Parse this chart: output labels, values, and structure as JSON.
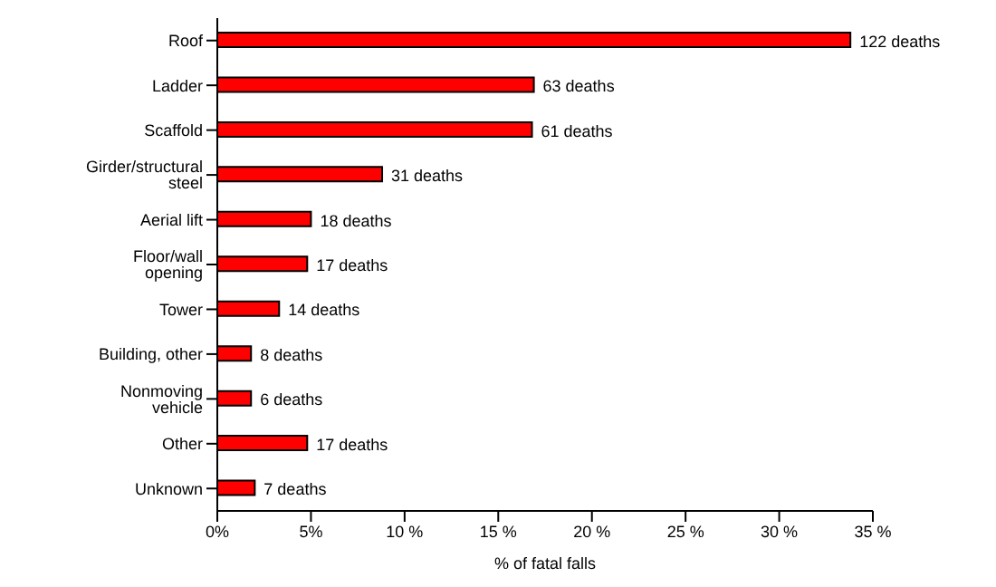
{
  "chart_data": {
    "type": "bar",
    "orientation": "horizontal",
    "xlabel": "% of fatal falls",
    "categories": [
      "Roof",
      "Ladder",
      "Scaffold",
      "Girder/structural steel",
      "Aerial lift",
      "Floor/wall opening",
      "Tower",
      "Building, other",
      "Nonmoving vehicle",
      "Other",
      "Unknown"
    ],
    "values": [
      33.8,
      16.9,
      16.8,
      8.8,
      5.0,
      4.8,
      3.3,
      1.8,
      1.8,
      4.8,
      2.0
    ],
    "annotations": [
      {
        "text": "122 deaths",
        "x": 33.8,
        "y": "Roof"
      },
      {
        "text": "63 deaths",
        "x": 16.9,
        "y": "Ladder"
      },
      {
        "text": "61 deaths",
        "x": 16.8,
        "y": "Scaffold"
      },
      {
        "text": "31 deaths",
        "x": 8.8,
        "y": "Girder/structural steel"
      },
      {
        "text": "18 deaths",
        "x": 5.0,
        "y": "Aerial lift"
      },
      {
        "text": "17 deaths",
        "x": 4.8,
        "y": "Floor/wall opening"
      },
      {
        "text": "14 deaths",
        "x": 3.3,
        "y": "Tower"
      },
      {
        "text": "8 deaths",
        "x": 1.8,
        "y": "Building, other"
      },
      {
        "text": "6 deaths",
        "x": 1.8,
        "y": "Nonmoving vehicle"
      },
      {
        "text": "17 deaths",
        "x": 4.8,
        "y": "Other"
      },
      {
        "text": "7 deaths",
        "x": 2.0,
        "y": "Unknown"
      }
    ],
    "color": "#ff0000",
    "xlim": [
      0,
      35
    ],
    "xticks": [
      {
        "value": 0,
        "label": "0%"
      },
      {
        "value": 5,
        "label": "5%"
      },
      {
        "value": 10,
        "label": "10 %"
      },
      {
        "value": 15,
        "label": "15 %"
      },
      {
        "value": 20,
        "label": "20 %"
      },
      {
        "value": 25,
        "label": "25 %"
      },
      {
        "value": 30,
        "label": "30 %"
      },
      {
        "value": 35,
        "label": "35 %"
      }
    ]
  }
}
